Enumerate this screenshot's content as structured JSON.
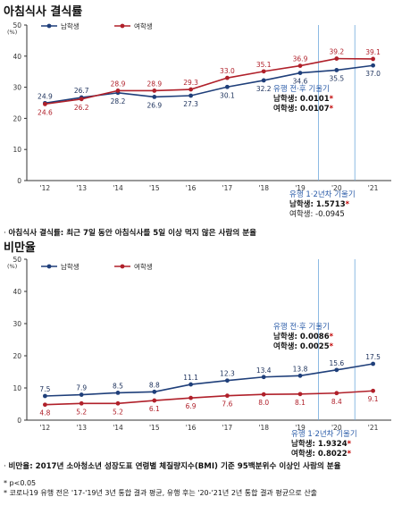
{
  "charts": [
    {
      "title": "아침식사 결식률",
      "note_bullet": "·",
      "note": "아침식사 결식률: 최근 7일 동안 아침식사를 5일 이상 먹지 않은 사람의 분율",
      "ylabel": "(%)",
      "ylim": [
        0,
        50
      ],
      "yticks": [
        0,
        10,
        20,
        30,
        40,
        50
      ],
      "categories": [
        "'12",
        "'13",
        "'14",
        "'15",
        "'16",
        "'17",
        "'18",
        "'19",
        "'20",
        "'21"
      ],
      "series": [
        {
          "name": "남학생",
          "color": "#1f3f7a",
          "values": [
            24.9,
            26.7,
            28.2,
            26.9,
            27.3,
            30.1,
            32.2,
            34.6,
            35.5,
            37.0
          ]
        },
        {
          "name": "여학생",
          "color": "#b0202a",
          "values": [
            24.6,
            26.2,
            28.9,
            28.9,
            29.3,
            33.0,
            35.1,
            36.9,
            39.2,
            39.1
          ]
        }
      ],
      "value_labels": {
        "male": [
          "24.9",
          "26.7",
          "28.2",
          "26.9",
          "27.3",
          "30.1",
          "32.2",
          "34.6",
          "35.5",
          "37.0"
        ],
        "female": [
          "24.6",
          "26.2",
          "28.9",
          "28.9",
          "29.3",
          "33.0",
          "35.1",
          "36.9",
          "39.2",
          "39.1"
        ]
      },
      "slope_box1": {
        "title": "유행 전·후 기울기",
        "male": "남학생: 0.0101*",
        "female": "여학생: 0.0107*"
      },
      "slope_box2": {
        "title": "유행 1·2년차 기울기",
        "male": "남학생: 1.5713*",
        "female": "여학생: -0.0945"
      }
    },
    {
      "title": "비만율",
      "note_bullet": "·",
      "note": "비만율: 2017년 소아청소년 성장도표 연령별 체질량지수(BMI) 기준 95백분위수 이상인 사람의 분율",
      "ylabel": "(%)",
      "ylim": [
        0,
        50
      ],
      "yticks": [
        0,
        10,
        20,
        30,
        40,
        50
      ],
      "categories": [
        "'12",
        "'13",
        "'14",
        "'15",
        "'16",
        "'17",
        "'18",
        "'19",
        "'20",
        "'21"
      ],
      "series": [
        {
          "name": "남학생",
          "color": "#1f3f7a",
          "values": [
            7.5,
            7.9,
            8.5,
            8.8,
            11.1,
            12.3,
            13.4,
            13.8,
            15.6,
            17.5
          ]
        },
        {
          "name": "여학생",
          "color": "#b0202a",
          "values": [
            4.8,
            5.2,
            5.2,
            6.1,
            6.9,
            7.6,
            8.0,
            8.1,
            8.4,
            9.1
          ]
        }
      ],
      "value_labels": {
        "male": [
          "7.5",
          "7.9",
          "8.5",
          "8.8",
          "11.1",
          "12.3",
          "13.4",
          "13.8",
          "15.6",
          "17.5"
        ],
        "female": [
          "4.8",
          "5.2",
          "5.2",
          "6.1",
          "6.9",
          "7.6",
          "8.0",
          "8.1",
          "8.4",
          "9.1"
        ]
      },
      "slope_box1": {
        "title": "유행 전·후 기울기",
        "male": "남학생: 0.0086*",
        "female": "여학생: 0.0025*"
      },
      "slope_box2": {
        "title": "유행 1·2년차 기울기",
        "male": "남학생: 1.9324*",
        "female": "여학생: 0.8022*"
      }
    }
  ],
  "footnotes": [
    "* p<0.05",
    "* 코로나19 유행 전은 '17-'19년 3년 통합 결과 평균, 유행 후는 '20-'21년 2년 통합 결과 평균으로 산출"
  ],
  "colors": {
    "male": "#1f3f7a",
    "female": "#b0202a",
    "slope_title": "#2a5ba8",
    "star": "#c00000",
    "divider": "#6fa8dc"
  }
}
